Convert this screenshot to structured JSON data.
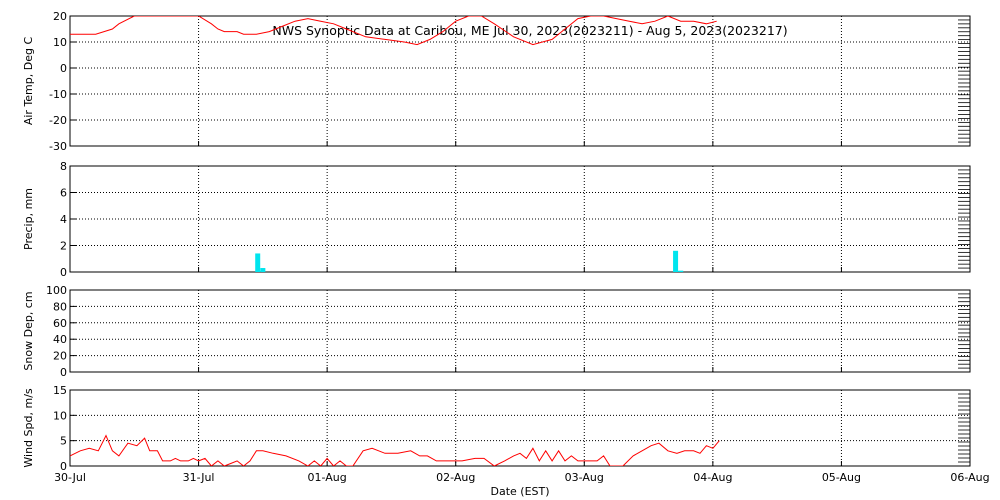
{
  "chart_data": {
    "type": "line",
    "title": "NWS Synoptic Data at Caribou, ME   Jul 30, 2023(2023211) - Aug  5, 2023(2023217)",
    "xlabel": "Date (EST)",
    "x_ticks": [
      "30-Jul",
      "31-Jul",
      "01-Aug",
      "02-Aug",
      "03-Aug",
      "04-Aug",
      "05-Aug",
      "06-Aug"
    ],
    "x_range_days": [
      0,
      7
    ],
    "line_color": "#ff0000",
    "bar_color": "#00e5ee",
    "panels": [
      {
        "id": "air_temp",
        "ylabel": "Air Temp, Deg C",
        "type": "line",
        "ylim": [
          -30,
          20
        ],
        "yticks": [
          20,
          10,
          0,
          -10,
          -20,
          -30
        ],
        "series": [
          {
            "x": [
              0,
              0.2,
              0.33,
              0.38,
              0.5,
              0.6,
              0.65,
              0.75,
              0.85,
              0.92,
              1.0,
              1.1,
              1.15,
              1.2,
              1.3,
              1.35,
              1.45,
              1.55,
              1.65,
              1.75,
              1.85,
              1.95,
              2.05,
              2.15,
              2.3,
              2.45,
              2.6,
              2.7,
              2.8,
              2.9,
              3.0,
              3.1,
              3.2,
              3.3,
              3.45,
              3.6,
              3.75,
              3.85,
              3.95,
              4.05,
              4.15,
              4.25,
              4.35,
              4.45,
              4.55,
              4.65,
              4.75,
              4.85,
              4.95,
              5.03
            ],
            "y": [
              13,
              13,
              15,
              17,
              20,
              20,
              20,
              20,
              20,
              20,
              20,
              17,
              15,
              14,
              14,
              13,
              13,
              14,
              16,
              18,
              19,
              18,
              17,
              15,
              12,
              11,
              10,
              9,
              11,
              14,
              18,
              20,
              20,
              17,
              12,
              9,
              11,
              15,
              19,
              20,
              20,
              19,
              18,
              17,
              18,
              20,
              18,
              18,
              17,
              18
            ]
          }
        ]
      },
      {
        "id": "precip",
        "ylabel": "Precip, mm",
        "type": "bar",
        "ylim": [
          0,
          8
        ],
        "yticks": [
          8,
          6,
          4,
          2,
          0
        ],
        "bars": [
          {
            "x": 1.46,
            "y": 1.4
          },
          {
            "x": 1.5,
            "y": 0.3
          },
          {
            "x": 4.71,
            "y": 1.6
          },
          {
            "x": 4.75,
            "y": 0.1
          }
        ]
      },
      {
        "id": "snow_depth",
        "ylabel": "Snow Dep, cm",
        "type": "line",
        "ylim": [
          0,
          100
        ],
        "yticks": [
          100,
          80,
          60,
          40,
          20,
          0
        ],
        "series": []
      },
      {
        "id": "wind_speed",
        "ylabel": "Wind Spd, m/s",
        "type": "line",
        "ylim": [
          0,
          15
        ],
        "yticks": [
          15,
          10,
          5,
          0
        ],
        "series": [
          {
            "x": [
              0,
              0.08,
              0.15,
              0.22,
              0.28,
              0.33,
              0.38,
              0.45,
              0.52,
              0.58,
              0.62,
              0.68,
              0.72,
              0.78,
              0.82,
              0.86,
              0.92,
              0.96,
              1.0,
              1.05,
              1.1,
              1.15,
              1.2,
              1.25,
              1.3,
              1.35,
              1.4,
              1.45,
              1.5,
              1.58,
              1.68,
              1.78,
              1.85,
              1.9,
              1.95,
              2.0,
              2.05,
              2.1,
              2.15,
              2.2,
              2.28,
              2.35,
              2.45,
              2.55,
              2.65,
              2.72,
              2.78,
              2.85,
              2.95,
              3.05,
              3.15,
              3.22,
              3.3,
              3.38,
              3.45,
              3.5,
              3.55,
              3.6,
              3.65,
              3.7,
              3.75,
              3.8,
              3.85,
              3.9,
              3.95,
              4.0,
              4.05,
              4.1,
              4.15,
              4.2,
              4.25,
              4.3,
              4.38,
              4.45,
              4.52,
              4.58,
              4.65,
              4.72,
              4.78,
              4.85,
              4.9,
              4.95,
              5.0,
              5.05
            ],
            "y": [
              2,
              3,
              3.5,
              3,
              6,
              3,
              2,
              4.5,
              4,
              5.5,
              3,
              3,
              1,
              1,
              1.5,
              1,
              1,
              1.5,
              1,
              1.5,
              0,
              1,
              0,
              0.5,
              1,
              0,
              1,
              3,
              3,
              2.5,
              2,
              1,
              0,
              1,
              0,
              1.5,
              0,
              1,
              0,
              0,
              3,
              3.5,
              2.5,
              2.5,
              3,
              2,
              2,
              1,
              1,
              1,
              1.5,
              1.5,
              0,
              1,
              2,
              2.5,
              1.5,
              3.5,
              1,
              3,
              1,
              3,
              1,
              2,
              1,
              1,
              1,
              1,
              2,
              0,
              0,
              0,
              2,
              3,
              4,
              4.5,
              3,
              2.5,
              3,
              3,
              2.5,
              4,
              3.5,
              5
            ]
          }
        ]
      }
    ]
  }
}
